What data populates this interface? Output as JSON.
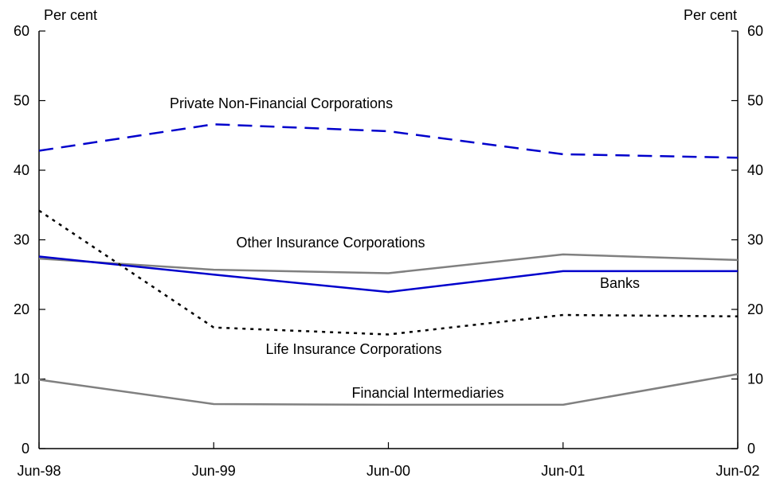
{
  "chart_data": {
    "type": "line",
    "title": "",
    "xlabel": "",
    "ylabel": "",
    "unit_left": "Per cent",
    "unit_right": "Per cent",
    "ylim": [
      0,
      60
    ],
    "yticks": [
      0,
      10,
      20,
      30,
      40,
      50,
      60
    ],
    "ytick_labels": [
      "0",
      "10",
      "20",
      "30",
      "40",
      "50",
      "60"
    ],
    "categories": [
      "Jun-98",
      "Jun-99",
      "Jun-00",
      "Jun-01",
      "Jun-02"
    ],
    "grid": false,
    "legend": "none",
    "series": [
      {
        "name": "Private Non-Financial Corporations",
        "values": [
          42.8,
          46.6,
          45.6,
          42.3,
          41.8
        ],
        "color": "#0000cc",
        "style": "dashed"
      },
      {
        "name": "Other Insurance Corporations",
        "values": [
          27.3,
          25.7,
          25.2,
          27.9,
          27.1
        ],
        "color": "#808080",
        "style": "solid"
      },
      {
        "name": "Banks",
        "values": [
          27.6,
          25.0,
          22.5,
          25.5,
          25.5
        ],
        "color": "#0000cc",
        "style": "solid"
      },
      {
        "name": "Life Insurance Corporations",
        "values": [
          34.2,
          17.4,
          16.4,
          19.2,
          19.0
        ],
        "color": "#000000",
        "style": "dotted"
      },
      {
        "name": "Financial Intermediaries",
        "values": [
          9.9,
          6.4,
          6.3,
          6.3,
          10.7
        ],
        "color": "#808080",
        "style": "solid"
      }
    ]
  }
}
